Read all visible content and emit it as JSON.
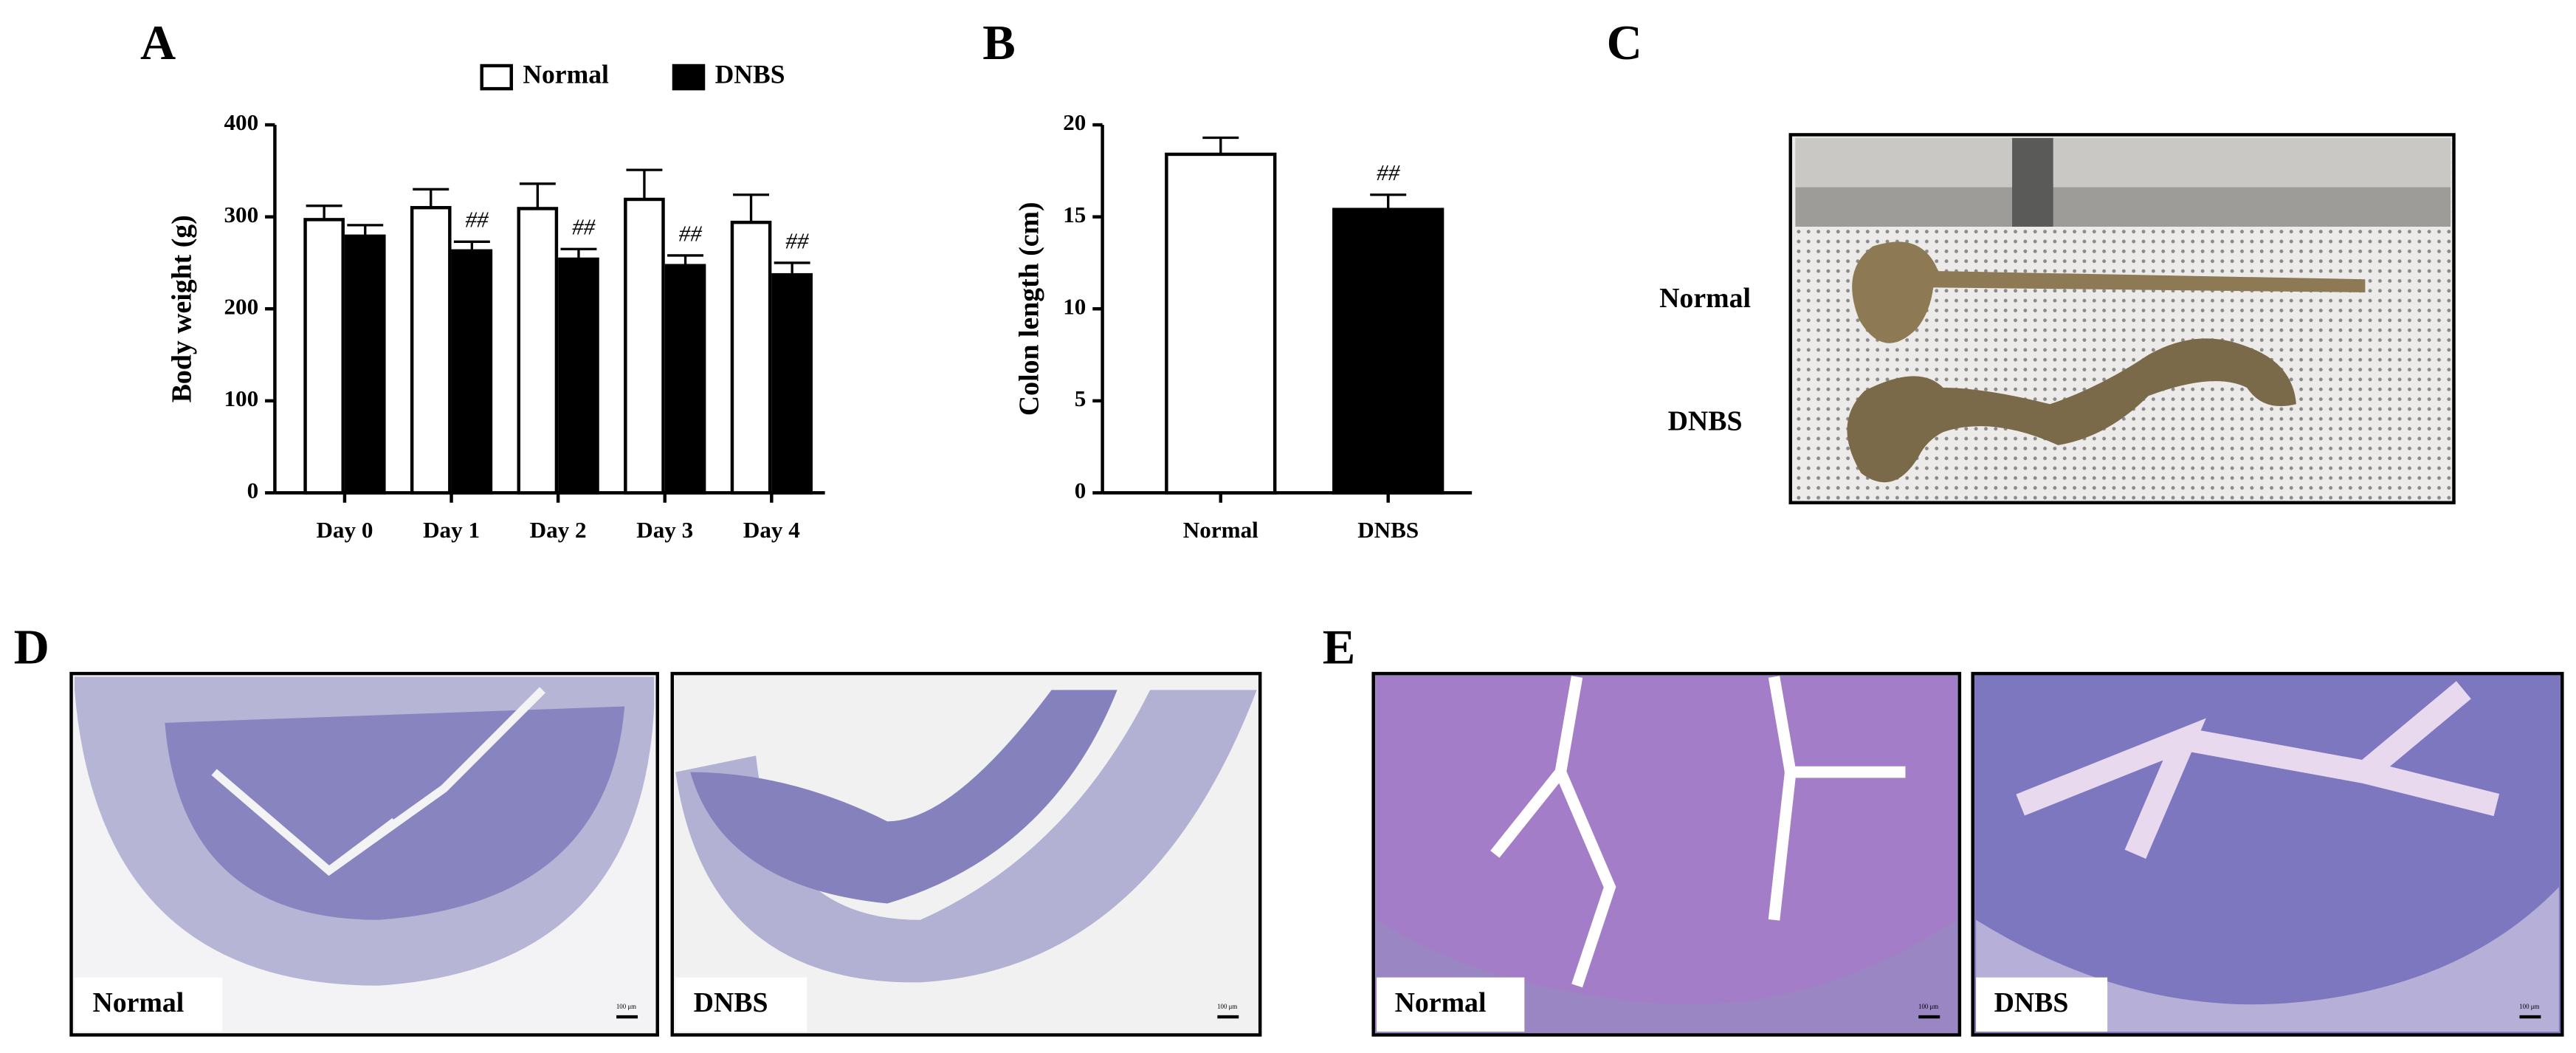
{
  "chart_data": [
    {
      "type": "bar",
      "ylabel": "Body weight (g)",
      "categories": [
        "Day 0",
        "Day 1",
        "Day 2",
        "Day 3",
        "Day 4"
      ],
      "series": [
        {
          "name": "Normal",
          "color": "#ffffff",
          "values": [
            297,
            310,
            309,
            319,
            294
          ],
          "errors": [
            15,
            20,
            27,
            32,
            30
          ],
          "annotations": [
            null,
            null,
            null,
            null,
            null
          ]
        },
        {
          "name": "DNBS",
          "color": "#000000",
          "values": [
            279,
            263,
            254,
            247,
            237
          ],
          "errors": [
            12,
            10,
            11,
            11,
            13
          ],
          "annotations": [
            null,
            "##",
            "##",
            "##",
            "##"
          ]
        }
      ],
      "ylim": [
        0,
        400
      ],
      "yticks": [
        0,
        100,
        200,
        300,
        400
      ],
      "legend": "top"
    },
    {
      "type": "bar",
      "ylabel": "Colon length (cm)",
      "categories": [
        "Normal",
        "DNBS"
      ],
      "values": [
        18.4,
        15.4
      ],
      "errors": [
        0.9,
        0.8
      ],
      "colors": [
        "#ffffff",
        "#000000"
      ],
      "annotations": [
        null,
        "##"
      ],
      "ylim": [
        0,
        20
      ],
      "yticks": [
        0,
        5,
        10,
        15,
        20
      ]
    }
  ],
  "panels": [
    "A",
    "B",
    "C",
    "D",
    "E"
  ],
  "photo_c": {
    "labels": [
      "Normal",
      "DNBS"
    ]
  },
  "photo_d": {
    "labels": [
      "Normal",
      "DNBS"
    ]
  },
  "photo_e": {
    "labels": [
      "Normal",
      "DNBS"
    ]
  },
  "scale_bar": "100 μm"
}
